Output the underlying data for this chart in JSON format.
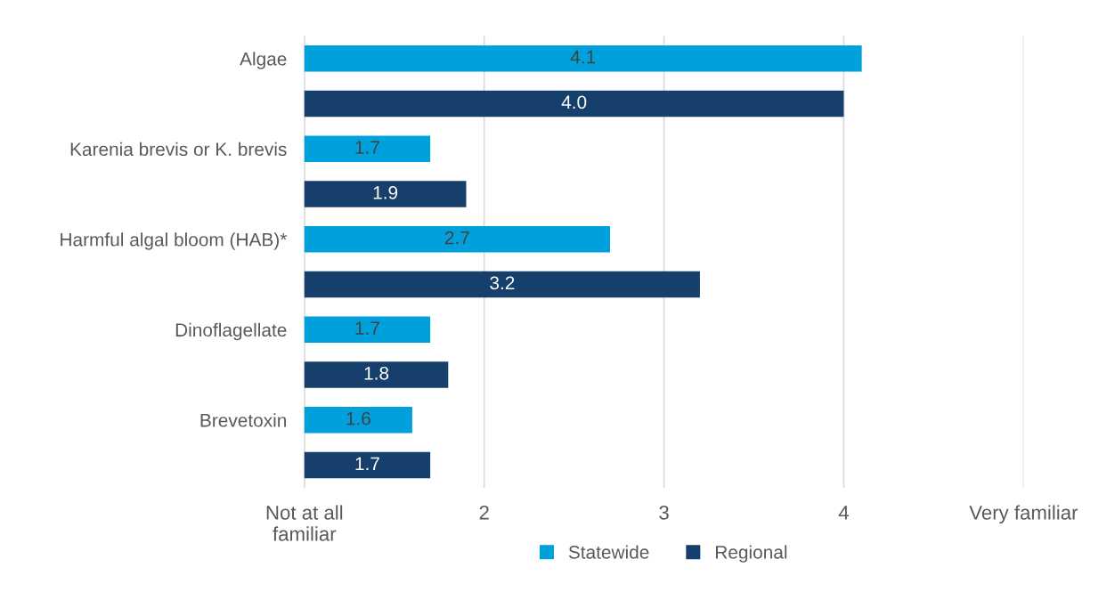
{
  "chart_data": {
    "type": "bar",
    "orientation": "horizontal",
    "categories": [
      "Algae",
      "Karenia brevis or K. brevis",
      "Harmful algal bloom (HAB)*",
      "Dinoflagellate",
      "Brevetoxin"
    ],
    "series": [
      {
        "name": "Statewide",
        "color": "#00a0dc",
        "values": [
          4.1,
          1.7,
          2.7,
          1.7,
          1.6
        ],
        "value_labels": [
          "4.1",
          "1.7",
          "2.7",
          "1.7",
          "1.6"
        ]
      },
      {
        "name": "Regional",
        "color": "#173f6b",
        "values": [
          4.0,
          1.9,
          3.2,
          1.8,
          1.7
        ],
        "value_labels": [
          "4.0",
          "1.9",
          "3.2",
          "1.8",
          "1.7"
        ]
      }
    ],
    "xlim": [
      1,
      5
    ],
    "xticks": [
      {
        "value": 1,
        "label": "Not at all\nfamiliar"
      },
      2,
      3,
      4,
      {
        "value": 5,
        "label": "Very familiar"
      }
    ],
    "grid": "x",
    "legend": "bottom"
  }
}
